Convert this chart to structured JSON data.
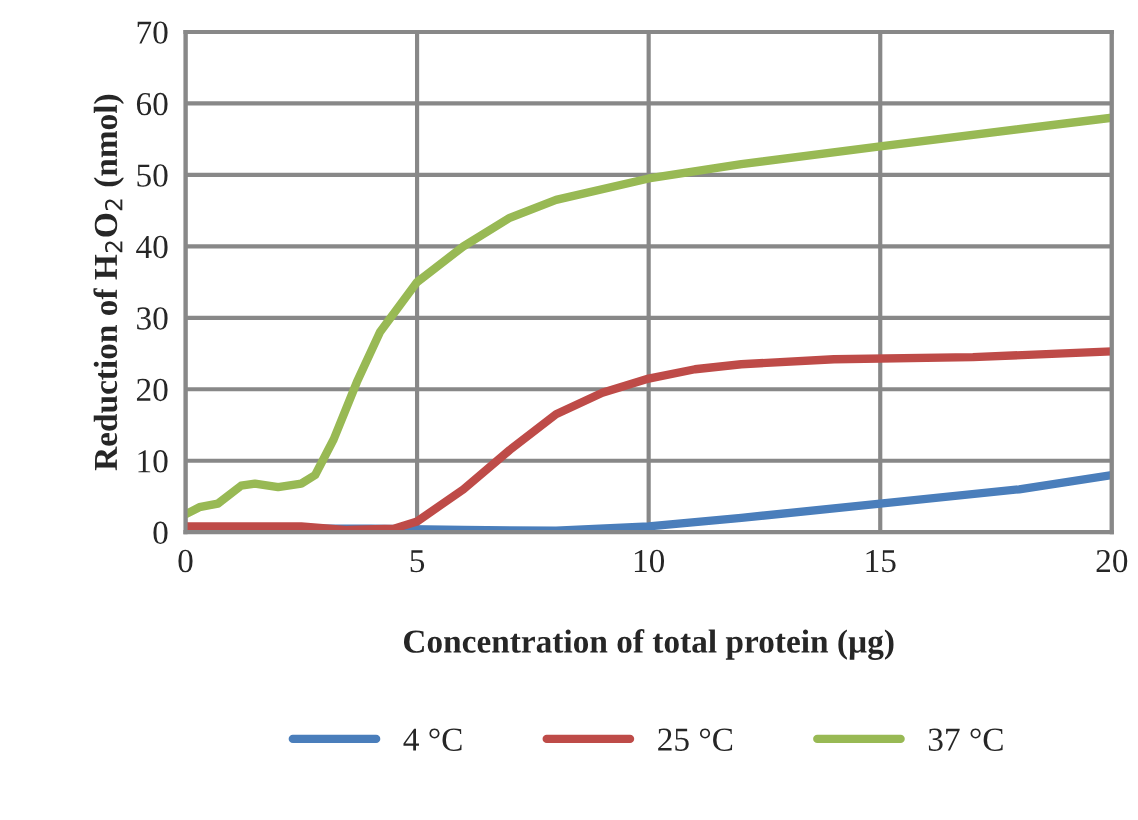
{
  "chart_data": {
    "type": "line",
    "xlabel": "Concentration of total protein (µg)",
    "ylabel": "Reduction of H$_{2}$O$_{2}$ (nmol)",
    "xlim": [
      0,
      20
    ],
    "xticks": [
      0,
      5,
      10,
      15,
      20
    ],
    "ylim": [
      0,
      70
    ],
    "yticks": [
      0,
      10,
      20,
      30,
      40,
      50,
      60,
      70
    ],
    "grid": true,
    "legend": "bottom",
    "marker": "none",
    "line_style": "solid",
    "series": [
      {
        "name": "4 °C",
        "color": "#4a7ebb",
        "x": [
          0,
          2,
          4,
          6,
          8,
          10,
          12,
          15,
          18,
          20
        ],
        "values": [
          0.5,
          0.5,
          0.5,
          0.3,
          0.2,
          0.8,
          2,
          4,
          6,
          8
        ]
      },
      {
        "name": "25 °C",
        "color": "#be4b48",
        "x": [
          0,
          1,
          2.5,
          3.5,
          4.5,
          5,
          6,
          7,
          8,
          9,
          10,
          11,
          12,
          14,
          17,
          20
        ],
        "values": [
          0.8,
          0.8,
          0.8,
          0.3,
          0.5,
          1.5,
          6,
          11.5,
          16.5,
          19.5,
          21.5,
          22.8,
          23.5,
          24.2,
          24.5,
          25.3
        ]
      },
      {
        "name": "37 °C",
        "color": "#98b954",
        "x": [
          0,
          0.3,
          0.7,
          1.2,
          1.5,
          2,
          2.5,
          2.8,
          3.2,
          3.7,
          4.2,
          5,
          6,
          7,
          8,
          10,
          12,
          15,
          20
        ],
        "values": [
          2.5,
          3.5,
          4,
          6.5,
          6.8,
          6.3,
          6.8,
          8,
          13,
          21,
          28,
          35,
          40,
          44,
          46.5,
          49.5,
          51.5,
          54,
          58
        ]
      }
    ]
  }
}
